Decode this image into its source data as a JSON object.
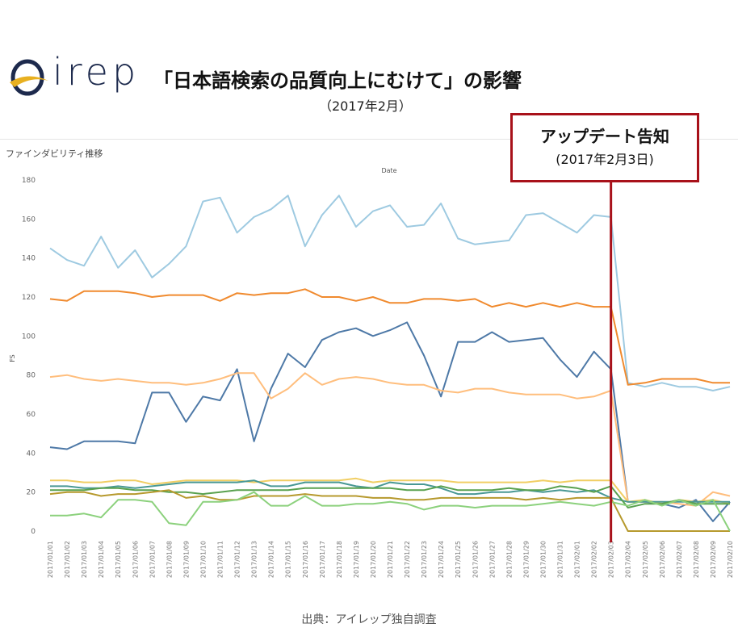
{
  "header": {
    "brand": "irep",
    "headline": "「日本語検索の品質向上にむけて」の影響",
    "subhead": "（2017年2月）"
  },
  "callout": {
    "title": "アップデート告知",
    "subtitle": "(2017年2月3日)"
  },
  "source": "出典：アイレップ独自調査",
  "colors": {
    "callout_border": "#a8111a",
    "annotation_line": "#a8111a"
  },
  "chart_data": {
    "type": "line",
    "title": "ファインダビリティ推移",
    "xlabel": "Date",
    "ylabel": "FS",
    "ylim": [
      0,
      180
    ],
    "yticks": [
      0,
      20,
      40,
      60,
      80,
      100,
      120,
      140,
      160,
      180
    ],
    "grid": false,
    "annotation_date": "2017/02/03",
    "x": [
      "2017/01/01",
      "2017/01/02",
      "2017/01/03",
      "2017/01/04",
      "2017/01/05",
      "2017/01/06",
      "2017/01/07",
      "2017/01/08",
      "2017/01/09",
      "2017/01/10",
      "2017/01/11",
      "2017/01/12",
      "2017/01/13",
      "2017/01/14",
      "2017/01/15",
      "2017/01/16",
      "2017/01/17",
      "2017/01/18",
      "2017/01/19",
      "2017/01/20",
      "2017/01/21",
      "2017/01/22",
      "2017/01/23",
      "2017/01/24",
      "2017/01/25",
      "2017/01/26",
      "2017/01/27",
      "2017/01/28",
      "2017/01/29",
      "2017/01/30",
      "2017/01/31",
      "2017/02/01",
      "2017/02/02",
      "2017/02/03",
      "2017/02/04",
      "2017/02/05",
      "2017/02/06",
      "2017/02/07",
      "2017/02/08",
      "2017/02/09",
      "2017/02/10"
    ],
    "series": [
      {
        "color": "#9ecae1",
        "values": [
          145,
          139,
          136,
          151,
          135,
          144,
          130,
          137,
          146,
          169,
          171,
          153,
          161,
          165,
          172,
          146,
          162,
          172,
          156,
          164,
          167,
          156,
          157,
          168,
          150,
          147,
          148,
          149,
          162,
          163,
          158,
          153,
          162,
          161,
          76,
          74,
          76,
          74,
          74,
          72,
          74
        ]
      },
      {
        "color": "#f08a2e",
        "values": [
          119,
          118,
          123,
          123,
          123,
          122,
          120,
          121,
          121,
          121,
          118,
          122,
          121,
          122,
          122,
          124,
          120,
          120,
          118,
          120,
          117,
          117,
          119,
          119,
          118,
          119,
          115,
          117,
          115,
          117,
          115,
          117,
          115,
          115,
          75,
          76,
          78,
          78,
          78,
          76,
          76
        ]
      },
      {
        "color": "#4e79a7",
        "values": [
          43,
          42,
          46,
          46,
          46,
          45,
          71,
          71,
          56,
          69,
          67,
          83,
          46,
          73,
          91,
          84,
          98,
          102,
          104,
          100,
          103,
          107,
          90,
          69,
          97,
          97,
          102,
          97,
          98,
          99,
          88,
          79,
          92,
          83,
          15,
          15,
          14,
          12,
          16,
          5,
          15
        ]
      },
      {
        "color": "#ffbe7d",
        "values": [
          79,
          80,
          78,
          77,
          78,
          77,
          76,
          76,
          75,
          76,
          78,
          81,
          81,
          68,
          73,
          81,
          75,
          78,
          79,
          78,
          76,
          75,
          75,
          72,
          71,
          73,
          73,
          71,
          70,
          70,
          70,
          68,
          69,
          72,
          15,
          15,
          15,
          14,
          13,
          20,
          18
        ]
      },
      {
        "color": "#f1ce63",
        "values": [
          26,
          26,
          25,
          25,
          26,
          26,
          24,
          25,
          26,
          26,
          26,
          26,
          25,
          26,
          26,
          26,
          26,
          26,
          27,
          25,
          26,
          26,
          26,
          26,
          25,
          25,
          25,
          25,
          25,
          26,
          25,
          26,
          26,
          26,
          15,
          16,
          14,
          16,
          15,
          16,
          14
        ]
      },
      {
        "color": "#499894",
        "values": [
          23,
          23,
          22,
          22,
          23,
          22,
          23,
          24,
          25,
          25,
          25,
          25,
          26,
          23,
          23,
          25,
          25,
          25,
          23,
          22,
          25,
          24,
          24,
          22,
          19,
          19,
          20,
          20,
          21,
          20,
          21,
          20,
          21,
          17,
          15,
          15,
          15,
          15,
          15,
          15,
          15
        ]
      },
      {
        "color": "#59a14f",
        "values": [
          21,
          21,
          21,
          22,
          22,
          21,
          21,
          20,
          20,
          19,
          20,
          21,
          21,
          21,
          21,
          22,
          22,
          22,
          22,
          22,
          22,
          21,
          21,
          23,
          21,
          21,
          21,
          22,
          21,
          21,
          23,
          22,
          20,
          23,
          12,
          14,
          14,
          16,
          14,
          14,
          14
        ]
      },
      {
        "color": "#b6992d",
        "values": [
          19,
          20,
          20,
          18,
          19,
          19,
          20,
          21,
          17,
          18,
          16,
          16,
          18,
          18,
          18,
          19,
          18,
          18,
          18,
          17,
          17,
          16,
          16,
          17,
          17,
          17,
          17,
          17,
          16,
          17,
          16,
          17,
          17,
          17,
          0,
          0,
          0,
          0,
          0,
          0,
          0
        ]
      },
      {
        "color": "#8cd17d",
        "values": [
          8,
          8,
          9,
          7,
          16,
          16,
          15,
          4,
          3,
          15,
          15,
          16,
          20,
          13,
          13,
          18,
          13,
          13,
          14,
          14,
          15,
          14,
          11,
          13,
          13,
          12,
          13,
          13,
          13,
          14,
          15,
          14,
          13,
          15,
          13,
          16,
          13,
          16,
          13,
          16,
          0
        ]
      }
    ]
  }
}
